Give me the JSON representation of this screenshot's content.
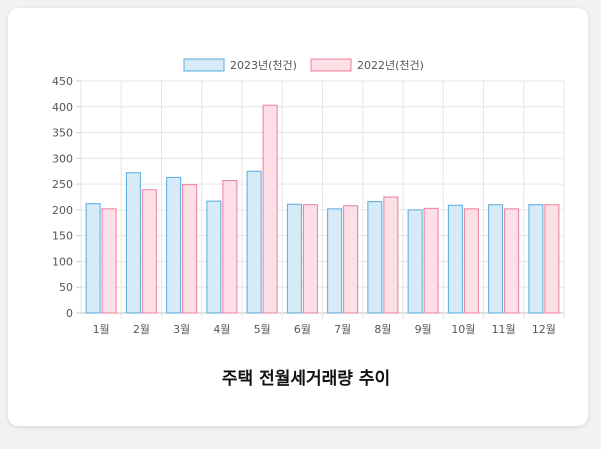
{
  "chart_data": {
    "type": "bar",
    "title": "주택 전월세거래량 추이",
    "categories": [
      "1월",
      "2월",
      "3월",
      "4월",
      "5월",
      "6월",
      "7월",
      "8월",
      "9월",
      "10월",
      "11월",
      "12월"
    ],
    "series": [
      {
        "name": "2023년(천건)",
        "values": [
          212,
          272,
          263,
          217,
          275,
          211,
          202,
          216,
          200,
          209,
          210,
          210
        ],
        "color": "#5aa9dc",
        "fill": "#d6ebf7"
      },
      {
        "name": "2022년(천건)",
        "values": [
          202,
          239,
          249,
          257,
          403,
          210,
          208,
          225,
          203,
          202,
          202,
          210
        ],
        "color": "#ec7f98",
        "fill": "#fde0e7"
      }
    ],
    "yticks": [
      0,
      50,
      100,
      150,
      200,
      250,
      300,
      350,
      400,
      450
    ],
    "ylim": [
      0,
      450
    ],
    "grid": true,
    "legend_position": "top"
  }
}
